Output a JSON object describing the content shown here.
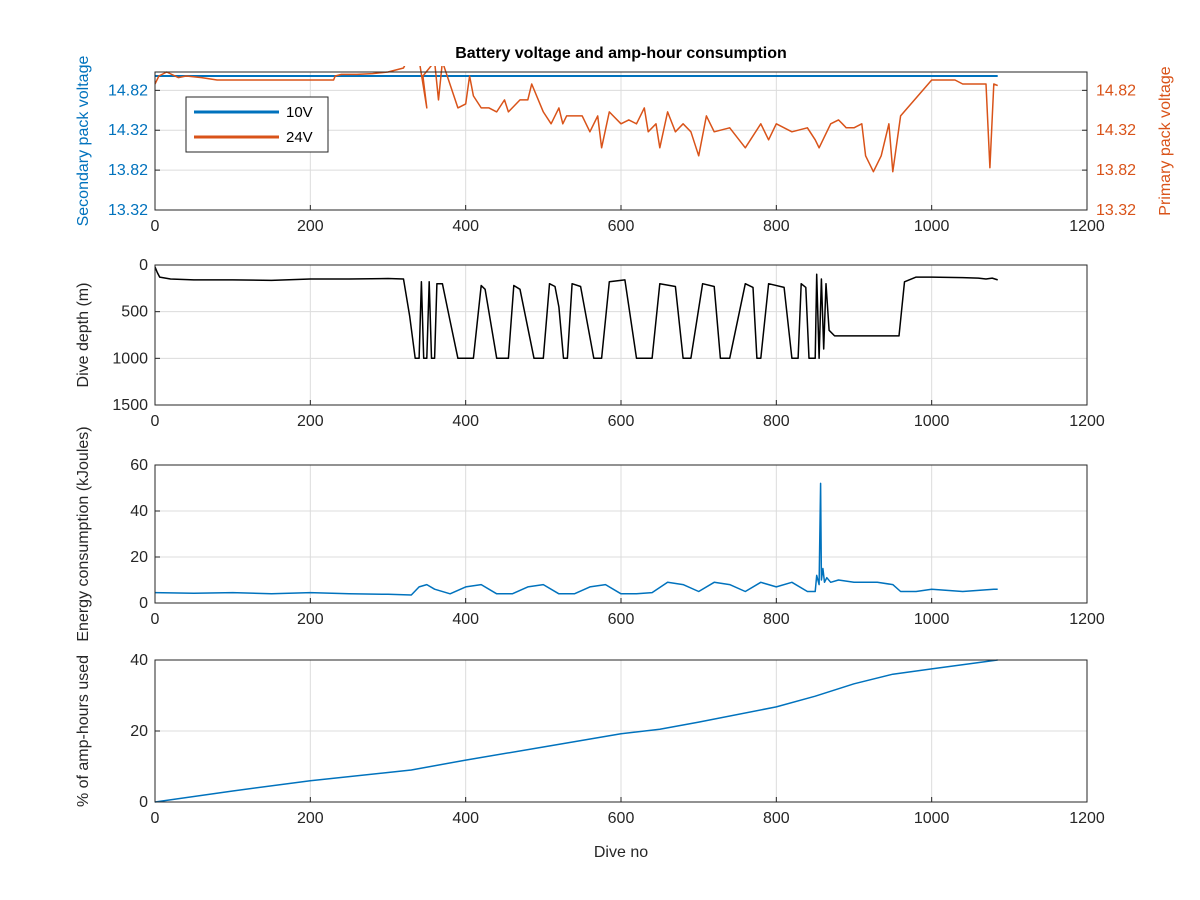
{
  "colors": {
    "blue": "#0072BD",
    "orange": "#D95319",
    "black": "#000000",
    "axis": "#262626",
    "grid": "#dcdcdc"
  },
  "chart_data": [
    {
      "type": "line",
      "title": "Battery voltage and amp-hour consumption",
      "xlabel": "",
      "ylabel": "Secondary pack voltage",
      "ylabel_right": "Primary pack voltage",
      "xlim": [
        0,
        1200
      ],
      "xticks": [
        0,
        200,
        400,
        600,
        800,
        1000,
        1200
      ],
      "ylim": [
        13.32,
        15.05
      ],
      "yticks": [
        13.32,
        13.82,
        14.32,
        14.82
      ],
      "ytick_labels": [
        "13.32",
        "13.82",
        "14.32",
        "14.82"
      ],
      "ytick_labels_right": [
        "13.32",
        "13.82",
        "14.32",
        "14.82"
      ],
      "grid": true,
      "legend": {
        "placement": "top-left",
        "entries": [
          "10V",
          "24V"
        ]
      },
      "series": [
        {
          "name": "10V",
          "color": "blue",
          "x": [
            0,
            1085
          ],
          "y": [
            15.0,
            15.0
          ]
        },
        {
          "name": "24V",
          "color": "orange",
          "x": [
            0,
            5,
            15,
            30,
            40,
            60,
            80,
            100,
            150,
            230,
            232,
            240,
            260,
            280,
            300,
            320,
            325,
            340,
            350,
            345,
            360,
            365,
            370,
            390,
            400,
            405,
            410,
            420,
            430,
            440,
            450,
            455,
            470,
            480,
            485,
            500,
            510,
            520,
            525,
            530,
            540,
            550,
            560,
            570,
            575,
            585,
            590,
            600,
            610,
            620,
            630,
            635,
            645,
            650,
            660,
            670,
            680,
            690,
            700,
            710,
            720,
            740,
            760,
            780,
            790,
            800,
            820,
            840,
            850,
            855,
            870,
            880,
            885,
            890,
            900,
            910,
            915,
            925,
            935,
            945,
            950,
            960,
            1000,
            1030,
            1040,
            1060,
            1070,
            1075,
            1080,
            1085
          ],
          "y": [
            14.9,
            15.0,
            15.05,
            14.98,
            15.0,
            14.98,
            14.95,
            14.95,
            14.95,
            14.95,
            15.0,
            15.02,
            15.02,
            15.03,
            15.05,
            15.1,
            15.2,
            15.2,
            14.6,
            15.0,
            15.18,
            14.7,
            15.18,
            14.6,
            14.65,
            15.0,
            14.75,
            14.6,
            14.6,
            14.55,
            14.7,
            14.55,
            14.7,
            14.7,
            14.9,
            14.55,
            14.4,
            14.6,
            14.4,
            14.5,
            14.5,
            14.5,
            14.3,
            14.5,
            14.1,
            14.55,
            14.5,
            14.4,
            14.45,
            14.4,
            14.6,
            14.3,
            14.4,
            14.1,
            14.55,
            14.3,
            14.4,
            14.3,
            14.0,
            14.5,
            14.3,
            14.35,
            14.1,
            14.4,
            14.2,
            14.4,
            14.3,
            14.35,
            14.2,
            14.1,
            14.4,
            14.45,
            14.4,
            14.35,
            14.35,
            14.4,
            14.0,
            13.8,
            14.0,
            14.4,
            13.8,
            14.5,
            14.95,
            14.95,
            14.9,
            14.9,
            14.9,
            13.85,
            14.9,
            14.88
          ]
        }
      ]
    },
    {
      "type": "line",
      "ylabel": "Dive depth (m)",
      "xlim": [
        0,
        1200
      ],
      "xticks": [
        0,
        200,
        400,
        600,
        800,
        1000,
        1200
      ],
      "ylim": [
        0,
        1500
      ],
      "yreverse": true,
      "yticks": [
        0,
        500,
        1000,
        1500
      ],
      "ytick_labels": [
        "0",
        "500",
        "1000",
        "1500"
      ],
      "grid": true,
      "series": [
        {
          "color": "black",
          "x": [
            0,
            3,
            6,
            20,
            50,
            100,
            150,
            200,
            250,
            300,
            320,
            328,
            335,
            340,
            343,
            346,
            350,
            353,
            356,
            360,
            363,
            370,
            380,
            390,
            400,
            410,
            420,
            425,
            440,
            455,
            462,
            470,
            488,
            500,
            508,
            515,
            520,
            526,
            531,
            537,
            548,
            565,
            575,
            585,
            605,
            620,
            625,
            640,
            650,
            670,
            680,
            690,
            705,
            720,
            728,
            740,
            760,
            770,
            775,
            780,
            790,
            810,
            820,
            828,
            832,
            838,
            842,
            846,
            850,
            852,
            855,
            858,
            861,
            864,
            868,
            875,
            950,
            958,
            965,
            980,
            1000,
            1040,
            1060,
            1070,
            1078,
            1085
          ],
          "y": [
            20,
            80,
            130,
            150,
            160,
            160,
            165,
            150,
            150,
            145,
            150,
            550,
            1000,
            1000,
            180,
            1000,
            1000,
            180,
            1000,
            1000,
            200,
            200,
            600,
            1000,
            1000,
            1000,
            220,
            260,
            1000,
            1000,
            220,
            260,
            1000,
            1000,
            200,
            230,
            450,
            1000,
            1000,
            200,
            230,
            1000,
            1000,
            180,
            160,
            1000,
            1000,
            1000,
            200,
            230,
            1000,
            1000,
            200,
            230,
            1000,
            1000,
            200,
            240,
            1000,
            1000,
            200,
            240,
            1000,
            1000,
            200,
            240,
            1000,
            1000,
            1000,
            100,
            1000,
            150,
            900,
            200,
            700,
            760,
            760,
            760,
            180,
            130,
            130,
            135,
            140,
            150,
            140,
            160
          ]
        }
      ]
    },
    {
      "type": "line",
      "ylabel": "Energy consumption (kJoules)",
      "xlim": [
        0,
        1200
      ],
      "xticks": [
        0,
        200,
        400,
        600,
        800,
        1000,
        1200
      ],
      "ylim": [
        0,
        60
      ],
      "yticks": [
        0,
        20,
        40,
        60
      ],
      "ytick_labels": [
        "0",
        "20",
        "40",
        "60"
      ],
      "grid": true,
      "series": [
        {
          "color": "blue",
          "x": [
            0,
            50,
            100,
            150,
            200,
            250,
            300,
            330,
            340,
            350,
            360,
            380,
            400,
            420,
            440,
            460,
            480,
            500,
            520,
            540,
            560,
            580,
            600,
            620,
            640,
            660,
            680,
            700,
            720,
            740,
            760,
            780,
            800,
            820,
            840,
            850,
            852,
            855,
            857,
            858,
            860,
            862,
            865,
            870,
            880,
            900,
            930,
            950,
            960,
            980,
            1000,
            1040,
            1060,
            1080,
            1085
          ],
          "y": [
            4.5,
            4.2,
            4.5,
            4.0,
            4.5,
            4.0,
            3.8,
            3.5,
            7.0,
            8.0,
            6.0,
            4.0,
            7.0,
            8.0,
            4.0,
            4.0,
            7.0,
            8.0,
            4.0,
            4.0,
            7.0,
            8.0,
            4.0,
            4.0,
            4.5,
            9.0,
            8.0,
            5.0,
            9.0,
            8.0,
            5.0,
            9.0,
            7.0,
            9.0,
            5.0,
            5.0,
            12.0,
            8.0,
            52.0,
            10.0,
            15.0,
            9.0,
            11.0,
            9.0,
            10.0,
            9.0,
            9.0,
            8.0,
            5.0,
            5.0,
            6.0,
            5.0,
            5.5,
            6.0,
            6.0
          ]
        }
      ]
    },
    {
      "type": "line",
      "xlabel": "Dive no",
      "ylabel": "% of amp-hours used",
      "xlim": [
        0,
        1200
      ],
      "xticks": [
        0,
        200,
        400,
        600,
        800,
        1000,
        1200
      ],
      "ylim": [
        0,
        40
      ],
      "yticks": [
        0,
        20,
        40
      ],
      "ytick_labels": [
        "0",
        "20",
        "40"
      ],
      "grid": true,
      "series": [
        {
          "color": "blue",
          "x": [
            0,
            100,
            200,
            300,
            330,
            400,
            500,
            600,
            650,
            700,
            800,
            850,
            900,
            950,
            1000,
            1085
          ],
          "y": [
            0,
            3.1,
            6.0,
            8.3,
            9.0,
            11.8,
            15.5,
            19.2,
            20.5,
            22.5,
            26.8,
            29.8,
            33.3,
            36.0,
            37.5,
            40.0
          ]
        }
      ]
    }
  ]
}
